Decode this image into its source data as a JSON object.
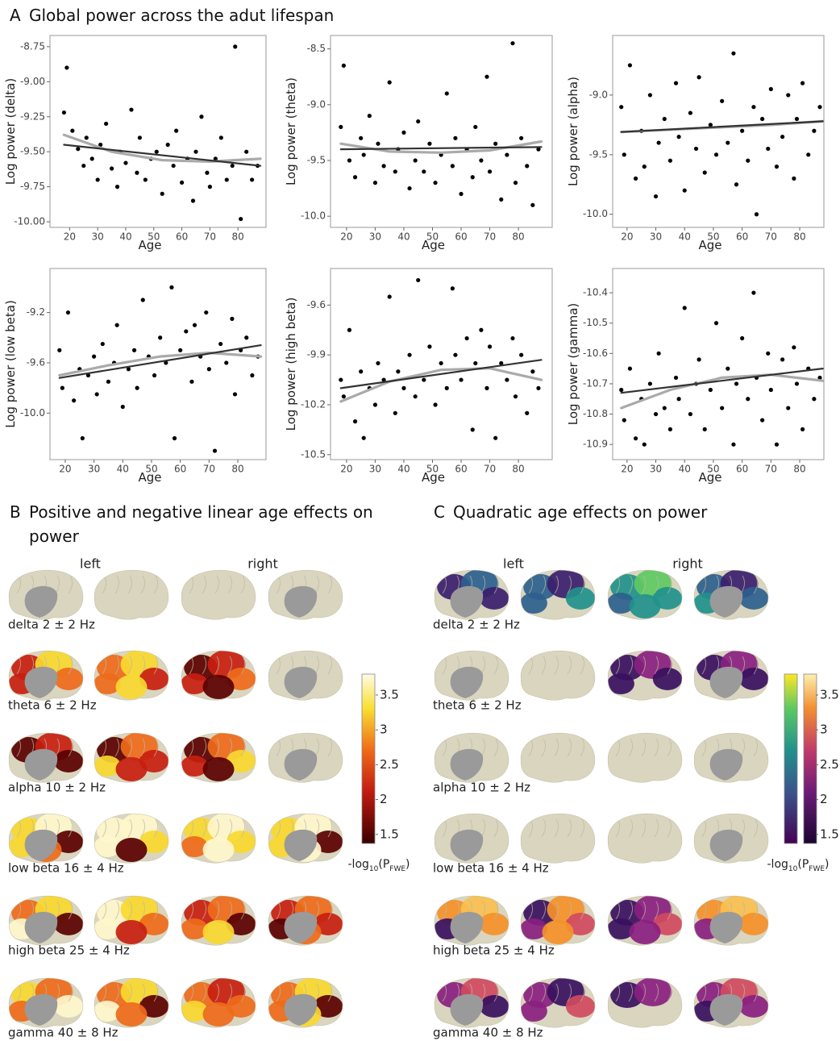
{
  "panel_a": {
    "letter": "A",
    "title": "Global power across the adut lifespan"
  },
  "chart_data": [
    {
      "type": "scatter",
      "xlabel": "Age",
      "ylabel": "Log power (delta)",
      "xlim": [
        13,
        90
      ],
      "ylim": [
        -10.04,
        -8.67
      ],
      "xticks": [
        20,
        30,
        40,
        50,
        60,
        70,
        80
      ],
      "yticks": [
        -8.75,
        {
          "value": -9,
          "label": "-9.00"
        },
        -9.25,
        {
          "value": -9.5,
          "label": "-9.50"
        },
        -9.75,
        {
          "value": -10,
          "label": "-10.00"
        }
      ],
      "point_color": "#000000",
      "x": [
        18,
        19,
        21,
        23,
        25,
        26,
        28,
        30,
        31,
        33,
        35,
        37,
        38,
        40,
        42,
        44,
        45,
        47,
        49,
        51,
        53,
        55,
        57,
        58,
        60,
        62,
        64,
        65,
        67,
        69,
        70,
        72,
        74,
        76,
        78,
        79,
        81,
        83,
        85,
        87
      ],
      "values": [
        -9.22,
        -8.9,
        -9.35,
        -9.48,
        -9.6,
        -9.4,
        -9.55,
        -9.7,
        -9.45,
        -9.3,
        -9.62,
        -9.75,
        -9.5,
        -9.58,
        -9.2,
        -9.65,
        -9.4,
        -9.7,
        -9.55,
        -9.5,
        -9.8,
        -9.45,
        -9.6,
        -9.35,
        -9.72,
        -9.55,
        -9.85,
        -9.5,
        -9.25,
        -9.65,
        -9.75,
        -9.55,
        -9.4,
        -9.7,
        -9.6,
        -8.75,
        -9.98,
        -9.5,
        -9.7,
        -9.6
      ],
      "fits": [
        {
          "color": "#aaaaaa",
          "x": [
            18,
            35,
            53,
            70,
            88
          ],
          "values": [
            -9.38,
            -9.5,
            -9.56,
            -9.57,
            -9.55
          ]
        },
        {
          "color": "#333333",
          "x": [
            18,
            88
          ],
          "values": [
            -9.45,
            -9.6
          ]
        }
      ]
    },
    {
      "type": "scatter",
      "xlabel": "Age",
      "ylabel": "Log power (theta)",
      "xlim": [
        14.4,
        91.8
      ],
      "ylim": [
        -10.1,
        -8.38
      ],
      "xticks": [
        20,
        30,
        40,
        50,
        60,
        70,
        80
      ],
      "yticks": [
        -8.5,
        {
          "value": -9,
          "label": "-9.0"
        },
        -9.5,
        {
          "value": -10,
          "label": "-10.0"
        }
      ],
      "point_color": "#000000",
      "x": [
        18,
        19,
        21,
        23,
        25,
        26,
        28,
        30,
        31,
        33,
        35,
        37,
        38,
        40,
        42,
        44,
        45,
        47,
        49,
        51,
        53,
        55,
        57,
        58,
        60,
        62,
        64,
        65,
        67,
        69,
        70,
        72,
        74,
        76,
        78,
        79,
        81,
        83,
        85,
        87
      ],
      "values": [
        -9.2,
        -8.65,
        -9.5,
        -9.65,
        -9.3,
        -9.45,
        -9.1,
        -9.7,
        -9.35,
        -9.55,
        -8.8,
        -9.6,
        -9.4,
        -9.25,
        -9.75,
        -9.5,
        -9.15,
        -9.6,
        -9.35,
        -9.7,
        -9.45,
        -8.9,
        -9.55,
        -9.3,
        -9.8,
        -9.4,
        -9.65,
        -9.2,
        -9.5,
        -8.75,
        -9.6,
        -9.35,
        -9.85,
        -9.45,
        -8.45,
        -9.7,
        -9.3,
        -9.55,
        -9.9,
        -9.4
      ],
      "fits": [
        {
          "color": "#aaaaaa",
          "x": [
            18,
            35,
            53,
            70,
            88
          ],
          "values": [
            -9.35,
            -9.42,
            -9.43,
            -9.41,
            -9.33
          ]
        },
        {
          "color": "#333333",
          "x": [
            18,
            88
          ],
          "values": [
            -9.4,
            -9.38
          ]
        }
      ]
    },
    {
      "type": "scatter",
      "xlabel": "Age",
      "ylabel": "Log power (alpha)",
      "xlim": [
        15,
        88.4
      ],
      "ylim": [
        -10.11,
        -8.5
      ],
      "xticks": [
        20,
        30,
        40,
        50,
        60,
        70,
        80
      ],
      "yticks": [
        {
          "value": -9,
          "label": "-9.0"
        },
        -9.5,
        {
          "value": -10,
          "label": "-10.0"
        }
      ],
      "point_color": "#000000",
      "x": [
        18,
        19,
        21,
        23,
        25,
        26,
        28,
        30,
        31,
        33,
        35,
        37,
        38,
        40,
        42,
        44,
        45,
        47,
        49,
        51,
        53,
        55,
        57,
        58,
        60,
        62,
        64,
        65,
        67,
        69,
        70,
        72,
        74,
        76,
        78,
        79,
        81,
        83,
        85,
        87
      ],
      "values": [
        -9.1,
        -9.5,
        -8.75,
        -9.7,
        -9.3,
        -9.6,
        -9.0,
        -9.85,
        -9.4,
        -9.2,
        -9.55,
        -8.9,
        -9.35,
        -9.8,
        -9.15,
        -9.45,
        -8.85,
        -9.65,
        -9.25,
        -9.5,
        -9.05,
        -9.4,
        -8.65,
        -9.75,
        -9.3,
        -9.55,
        -9.1,
        -10.0,
        -9.2,
        -9.45,
        -8.95,
        -9.6,
        -9.35,
        -9.0,
        -9.7,
        -9.2,
        -8.9,
        -9.5,
        -9.3,
        -9.1
      ],
      "fits": [
        {
          "color": "#aaaaaa",
          "x": [
            18,
            35,
            53,
            70,
            88
          ],
          "values": [
            -9.31,
            -9.29,
            -9.27,
            -9.25,
            -9.22
          ]
        },
        {
          "color": "#333333",
          "x": [
            18,
            88
          ],
          "values": [
            -9.31,
            -9.22
          ]
        }
      ]
    },
    {
      "type": "scatter",
      "xlabel": "Age",
      "ylabel": "Log power (low beta)",
      "xlim": [
        14.7,
        89.8
      ],
      "ylim": [
        -10.37,
        -8.85
      ],
      "xticks": [
        20,
        30,
        40,
        50,
        60,
        70,
        80
      ],
      "yticks": [
        -9.2,
        -9.6,
        {
          "value": -10,
          "label": "-10.0"
        }
      ],
      "point_color": "#000000",
      "x": [
        18,
        19,
        21,
        23,
        25,
        26,
        28,
        30,
        31,
        33,
        35,
        37,
        38,
        40,
        42,
        44,
        45,
        47,
        49,
        51,
        53,
        55,
        57,
        58,
        60,
        62,
        64,
        65,
        67,
        69,
        70,
        72,
        74,
        76,
        78,
        79,
        81,
        83,
        85,
        87
      ],
      "values": [
        -9.5,
        -9.8,
        -9.2,
        -9.9,
        -9.65,
        -10.2,
        -9.7,
        -9.55,
        -9.85,
        -9.45,
        -9.75,
        -9.6,
        -9.3,
        -9.95,
        -9.65,
        -9.5,
        -9.8,
        -9.1,
        -9.55,
        -9.7,
        -9.4,
        -9.6,
        -9.0,
        -10.2,
        -9.5,
        -9.35,
        -9.75,
        -9.3,
        -9.55,
        -9.2,
        -9.65,
        -10.3,
        -9.45,
        -9.6,
        -9.25,
        -9.85,
        -9.5,
        -9.4,
        -9.7,
        -9.55
      ],
      "fits": [
        {
          "color": "#aaaaaa",
          "x": [
            18,
            35,
            53,
            70,
            88
          ],
          "values": [
            -9.7,
            -9.62,
            -9.55,
            -9.52,
            -9.55
          ]
        },
        {
          "color": "#333333",
          "x": [
            18,
            88
          ],
          "values": [
            -9.72,
            -9.46
          ]
        }
      ]
    },
    {
      "type": "scatter",
      "xlabel": "Age",
      "ylabel": "Log power (high beta)",
      "xlim": [
        14.4,
        91.8
      ],
      "ylim": [
        -10.53,
        -9.38
      ],
      "xticks": [
        20,
        30,
        40,
        50,
        60,
        70,
        80
      ],
      "yticks": [
        -9.6,
        -9.9,
        -10.2,
        -10.5
      ],
      "point_color": "#000000",
      "x": [
        18,
        19,
        21,
        23,
        25,
        26,
        28,
        30,
        31,
        33,
        35,
        37,
        38,
        40,
        42,
        44,
        45,
        47,
        49,
        51,
        53,
        55,
        57,
        58,
        60,
        62,
        64,
        65,
        67,
        69,
        70,
        72,
        74,
        76,
        78,
        79,
        81,
        83,
        85,
        87
      ],
      "values": [
        -10.05,
        -10.15,
        -9.75,
        -10.3,
        -10.0,
        -10.4,
        -10.1,
        -10.2,
        -9.95,
        -10.05,
        -9.55,
        -10.25,
        -10.0,
        -10.1,
        -9.9,
        -10.15,
        -9.45,
        -10.05,
        -9.85,
        -10.2,
        -9.95,
        -10.1,
        -9.5,
        -9.9,
        -10.05,
        -9.8,
        -10.35,
        -9.95,
        -9.75,
        -10.1,
        -9.85,
        -10.4,
        -9.95,
        -10.05,
        -9.8,
        -10.15,
        -9.9,
        -10.25,
        -10.0,
        -10.1
      ],
      "fits": [
        {
          "color": "#aaaaaa",
          "x": [
            18,
            35,
            53,
            70,
            88
          ],
          "values": [
            -10.18,
            -10.06,
            -9.99,
            -9.98,
            -10.05
          ]
        },
        {
          "color": "#333333",
          "x": [
            18,
            88
          ],
          "values": [
            -10.1,
            -9.93
          ]
        }
      ]
    },
    {
      "type": "scatter",
      "xlabel": "Age",
      "ylabel": "Log power (gamma)",
      "xlim": [
        15,
        88.4
      ],
      "ylim": [
        -10.95,
        -10.32
      ],
      "xticks": [
        20,
        30,
        40,
        50,
        60,
        70,
        80
      ],
      "yticks": [
        -10.4,
        -10.5,
        -10.6,
        -10.7,
        -10.8,
        -10.9
      ],
      "point_color": "#000000",
      "x": [
        18,
        19,
        21,
        23,
        25,
        26,
        28,
        30,
        31,
        33,
        35,
        37,
        38,
        40,
        42,
        44,
        45,
        47,
        49,
        51,
        53,
        55,
        57,
        58,
        60,
        62,
        64,
        65,
        67,
        69,
        70,
        72,
        74,
        76,
        78,
        79,
        81,
        83,
        85,
        87
      ],
      "values": [
        -10.72,
        -10.82,
        -10.65,
        -10.88,
        -10.75,
        -10.9,
        -10.7,
        -10.8,
        -10.6,
        -10.78,
        -10.85,
        -10.68,
        -10.75,
        -10.45,
        -10.8,
        -10.7,
        -10.62,
        -10.85,
        -10.72,
        -10.5,
        -10.78,
        -10.65,
        -10.9,
        -10.7,
        -10.55,
        -10.75,
        -10.4,
        -10.68,
        -10.82,
        -10.6,
        -10.72,
        -10.9,
        -10.62,
        -10.78,
        -10.58,
        -10.7,
        -10.85,
        -10.65,
        -10.75,
        -10.68
      ],
      "fits": [
        {
          "color": "#aaaaaa",
          "x": [
            18,
            35,
            53,
            70,
            88
          ],
          "values": [
            -10.78,
            -10.72,
            -10.68,
            -10.67,
            -10.69
          ]
        },
        {
          "color": "#333333",
          "x": [
            18,
            88
          ],
          "values": [
            -10.73,
            -10.65
          ]
        }
      ]
    }
  ],
  "panel_b": {
    "letter": "B",
    "title": "Positive and negative linear age effects on power",
    "hemispheres": [
      "left",
      "right"
    ],
    "bands": [
      "delta 2 ± 2 Hz",
      "theta 6 ± 2 Hz",
      "alpha 10 ± 2 Hz",
      "low beta 16 ± 4 Hz",
      "high beta 25 ± 4 Hz",
      "gamma 40 ± 8 Hz"
    ],
    "colorbar": {
      "lim": [
        1.37,
        3.8
      ],
      "ticks": [
        1.5,
        2,
        2.5,
        3,
        3.5
      ],
      "label": [
        "-log",
        "10",
        "(P",
        "FWE",
        ")"
      ]
    }
  },
  "panel_c": {
    "letter": "C",
    "title": "Quadratic age effects on power",
    "hemispheres": [
      "left",
      "right"
    ],
    "bands": [
      "delta 2 ± 2 Hz",
      "theta 6 ± 2 Hz",
      "alpha 10 ± 2 Hz",
      "low beta 16 ± 4 Hz",
      "high beta 25 ± 4 Hz",
      "gamma 40 ± 8 Hz"
    ],
    "colorbar": {
      "lim": [
        1.37,
        3.8
      ],
      "ticks": [
        1.5,
        2,
        2.5,
        3,
        3.5
      ],
      "label": [
        "-log",
        "10",
        "(P",
        "FWE",
        ")"
      ]
    }
  }
}
